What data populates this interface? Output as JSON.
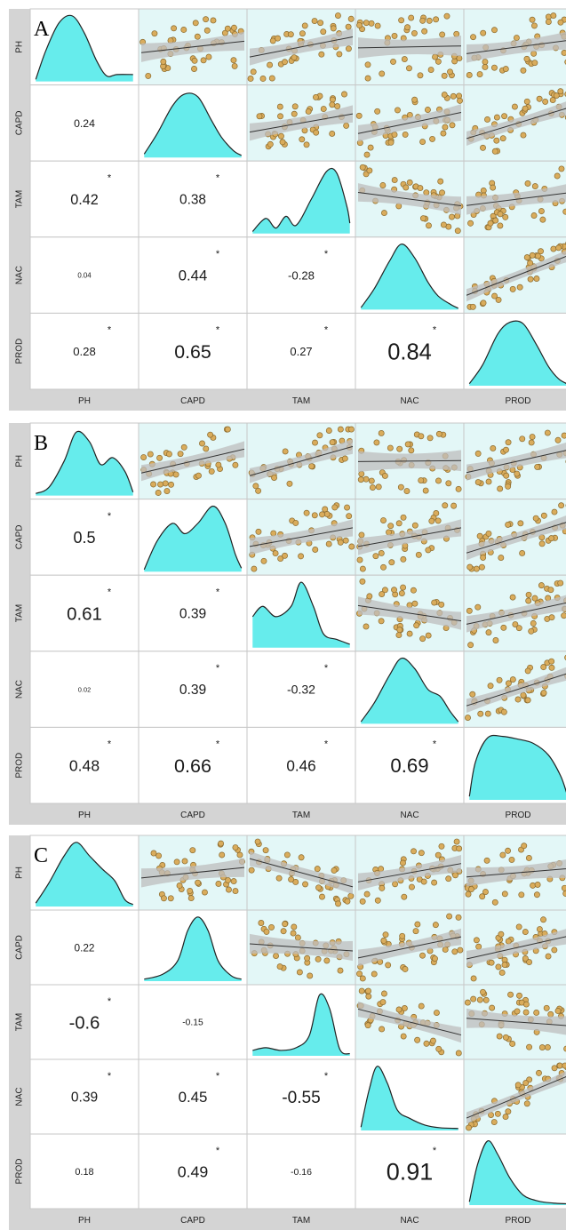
{
  "colors": {
    "strip": "#d4d4d4",
    "scatter_bg": "#e3f7f7",
    "white_bg": "#ffffff",
    "density_fill": "#66ecec",
    "point_fill": "#d9ac5c",
    "point_stroke": "#8a6a2e",
    "band": "#bdbdbd",
    "grid_line": "#c7c7c7"
  },
  "chart_data": [
    {
      "type": "scatter-matrix",
      "panel_label": "A",
      "variables": [
        "PH",
        "CAPD",
        "TAM",
        "NAC",
        "PROD"
      ],
      "correlations": [
        {
          "row": "CAPD",
          "col": "PH",
          "r": "0.24",
          "significant": false
        },
        {
          "row": "TAM",
          "col": "PH",
          "r": "0.42",
          "significant": true
        },
        {
          "row": "TAM",
          "col": "CAPD",
          "r": "0.38",
          "significant": true
        },
        {
          "row": "NAC",
          "col": "PH",
          "r": "0.04",
          "significant": false
        },
        {
          "row": "NAC",
          "col": "CAPD",
          "r": "0.44",
          "significant": true
        },
        {
          "row": "NAC",
          "col": "TAM",
          "r": "-0.28",
          "significant": true
        },
        {
          "row": "PROD",
          "col": "PH",
          "r": "0.28",
          "significant": true
        },
        {
          "row": "PROD",
          "col": "CAPD",
          "r": "0.65",
          "significant": true
        },
        {
          "row": "PROD",
          "col": "TAM",
          "r": "0.27",
          "significant": true
        },
        {
          "row": "PROD",
          "col": "NAC",
          "r": "0.84",
          "significant": true
        }
      ]
    },
    {
      "type": "scatter-matrix",
      "panel_label": "B",
      "variables": [
        "PH",
        "CAPD",
        "TAM",
        "NAC",
        "PROD"
      ],
      "correlations": [
        {
          "row": "CAPD",
          "col": "PH",
          "r": "0.5",
          "significant": true
        },
        {
          "row": "TAM",
          "col": "PH",
          "r": "0.61",
          "significant": true
        },
        {
          "row": "TAM",
          "col": "CAPD",
          "r": "0.39",
          "significant": true
        },
        {
          "row": "NAC",
          "col": "PH",
          "r": "0.02",
          "significant": false
        },
        {
          "row": "NAC",
          "col": "CAPD",
          "r": "0.39",
          "significant": true
        },
        {
          "row": "NAC",
          "col": "TAM",
          "r": "-0.32",
          "significant": true
        },
        {
          "row": "PROD",
          "col": "PH",
          "r": "0.48",
          "significant": true
        },
        {
          "row": "PROD",
          "col": "CAPD",
          "r": "0.66",
          "significant": true
        },
        {
          "row": "PROD",
          "col": "TAM",
          "r": "0.46",
          "significant": true
        },
        {
          "row": "PROD",
          "col": "NAC",
          "r": "0.69",
          "significant": true
        }
      ]
    },
    {
      "type": "scatter-matrix",
      "panel_label": "C",
      "variables": [
        "PH",
        "CAPD",
        "TAM",
        "NAC",
        "PROD"
      ],
      "correlations": [
        {
          "row": "CAPD",
          "col": "PH",
          "r": "0.22",
          "significant": false
        },
        {
          "row": "TAM",
          "col": "PH",
          "r": "-0.6",
          "significant": true
        },
        {
          "row": "TAM",
          "col": "CAPD",
          "r": "-0.15",
          "significant": false
        },
        {
          "row": "NAC",
          "col": "PH",
          "r": "0.39",
          "significant": true
        },
        {
          "row": "NAC",
          "col": "CAPD",
          "r": "0.45",
          "significant": true
        },
        {
          "row": "NAC",
          "col": "TAM",
          "r": "-0.55",
          "significant": true
        },
        {
          "row": "PROD",
          "col": "PH",
          "r": "0.18",
          "significant": false
        },
        {
          "row": "PROD",
          "col": "CAPD",
          "r": "0.49",
          "significant": true
        },
        {
          "row": "PROD",
          "col": "TAM",
          "r": "-0.16",
          "significant": false
        },
        {
          "row": "PROD",
          "col": "NAC",
          "r": "0.91",
          "significant": true
        }
      ]
    }
  ]
}
